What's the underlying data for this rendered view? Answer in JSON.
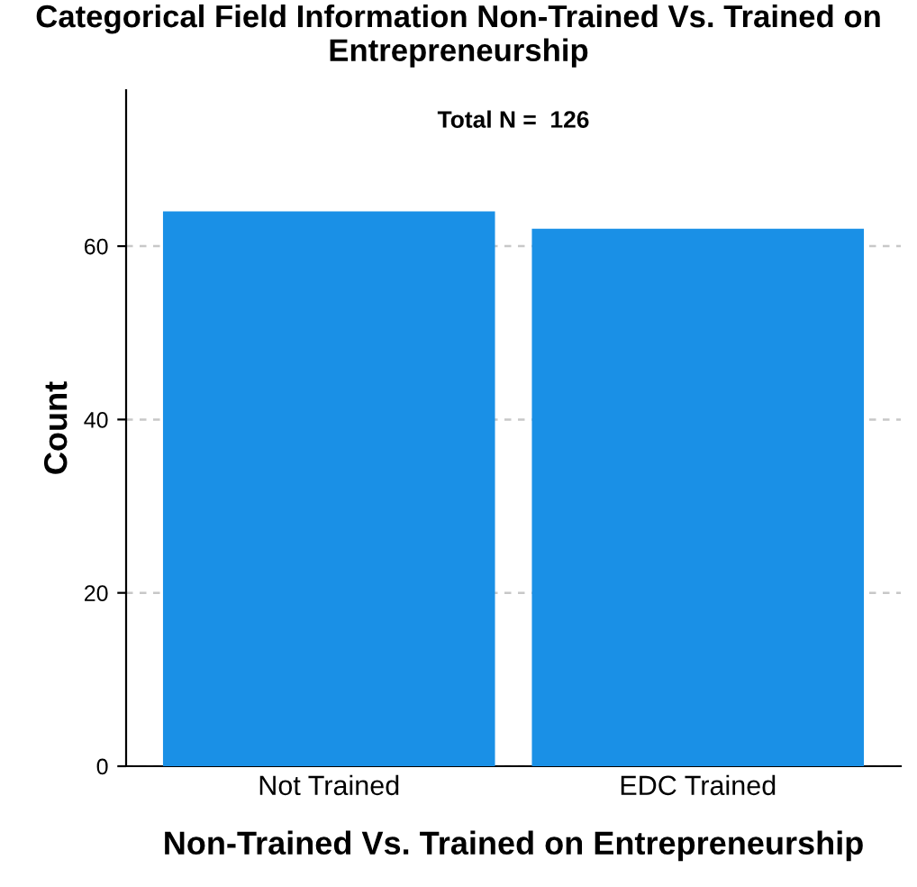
{
  "chart_data": {
    "type": "bar",
    "title": "Categorical Field Information Non-Trained Vs. Trained on Entrepreneurship",
    "xlabel": "Non-Trained Vs. Trained on Entrepreneurship",
    "ylabel": "Count",
    "categories": [
      "Not Trained",
      "EDC Trained"
    ],
    "values": [
      64,
      62
    ],
    "color": "#1a90e6",
    "ylim": [
      0,
      78
    ],
    "yticks": [
      0,
      20,
      40,
      60
    ],
    "grid": "y",
    "annotations": [
      "Total N =  126"
    ]
  }
}
